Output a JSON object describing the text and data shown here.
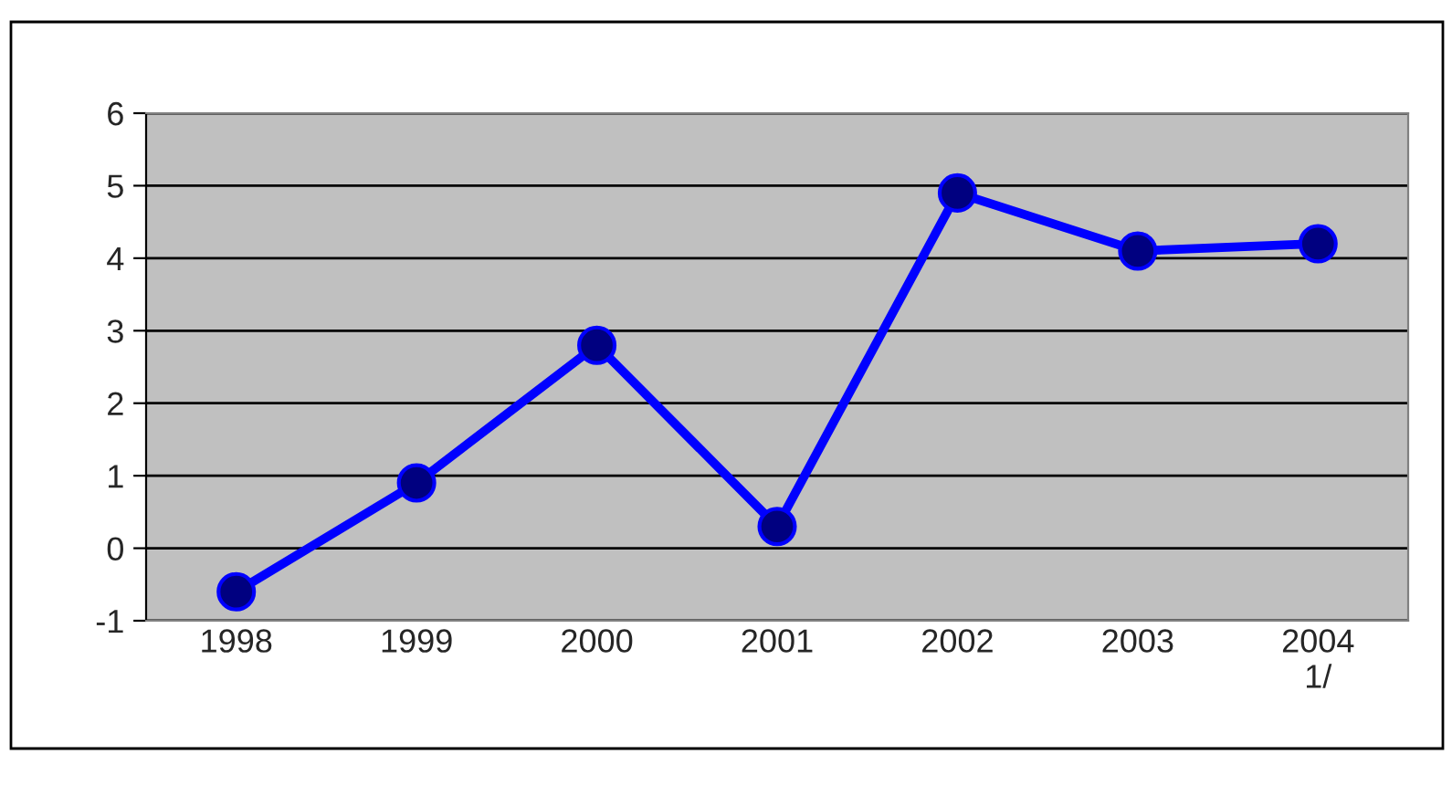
{
  "chart_data": {
    "type": "line",
    "categories": [
      "1998",
      "1999",
      "2000",
      "2001",
      "2002",
      "2003",
      "2004\n1/"
    ],
    "series": [
      {
        "color": "#0000ff",
        "values": [
          -0.6,
          0.9,
          2.8,
          0.3,
          4.9,
          4.1,
          4.2
        ]
      }
    ],
    "ylim": [
      -1,
      6
    ],
    "yticks": [
      -1,
      0,
      1,
      2,
      3,
      4,
      5,
      6
    ],
    "grid": "y",
    "marker": "circle",
    "line_style": "solid",
    "legend": false
  }
}
